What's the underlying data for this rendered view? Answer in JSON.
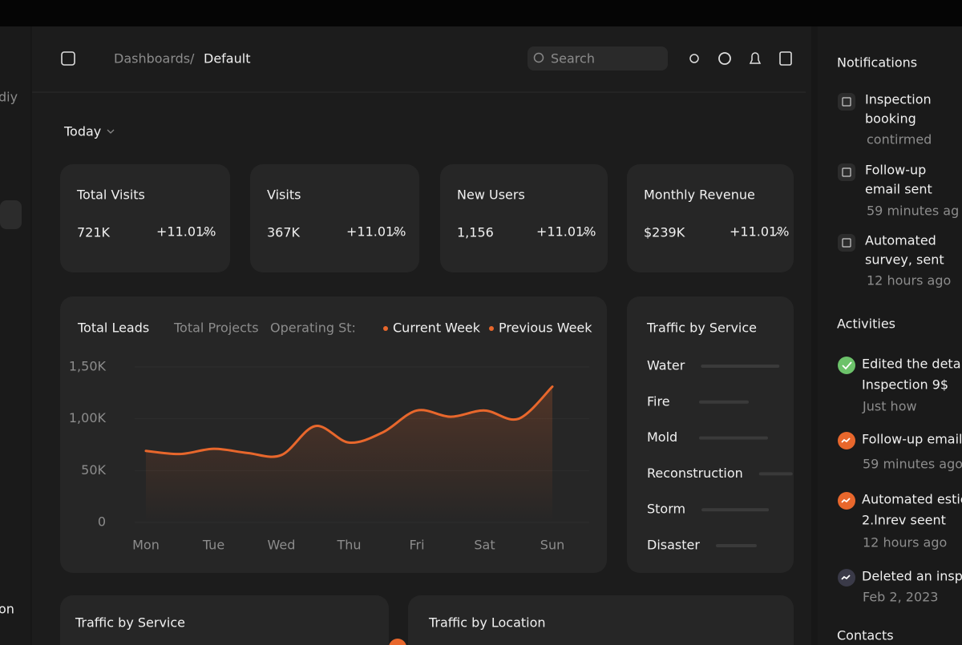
{
  "sidebar_left": {
    "fragment_top": "diy",
    "fragment_bottom": "on"
  },
  "header": {
    "breadcrumb_parent": "Dashboards",
    "separator": "/",
    "breadcrumb_current": "Default",
    "search_placeholder": "Search"
  },
  "filter": "Today",
  "stats": [
    {
      "label": "Total Visits",
      "value": "721K",
      "change": "+11.01%"
    },
    {
      "label": "Visits",
      "value": "367K",
      "change": "+11.01%"
    },
    {
      "label": "New Users",
      "value": "1,156",
      "change": "+11.01%"
    },
    {
      "label": "Monthly Revenue",
      "value": "$239K",
      "change": "+11.01%"
    }
  ],
  "chart_data": {
    "type": "line",
    "title": "Total Leads",
    "tabs": [
      "Total Projects",
      "Operating St:"
    ],
    "categories": [
      "Mon",
      null,
      "Tue",
      null,
      "Wed",
      null,
      "Thu",
      null,
      "Fri",
      null,
      "Sat",
      null,
      "Sun"
    ],
    "series": [
      {
        "name": "Current Week",
        "color": "#e8672c",
        "values": [
          69000,
          66000,
          71000,
          67000,
          65000,
          93000,
          77000,
          87000,
          108000,
          102000,
          108000,
          100000,
          131000
        ]
      },
      {
        "name": "Previous Week",
        "color": "#e8672c",
        "values": [
          null,
          null,
          null,
          null,
          null,
          null,
          null,
          null,
          null,
          null,
          null,
          null,
          null
        ]
      }
    ],
    "ylim": [
      0,
      150000
    ],
    "yticks": [
      0,
      {
        "value": 50000,
        "label": "50K"
      },
      {
        "value": 100000,
        "label": "1,00K"
      },
      {
        "value": 150000,
        "label": "1,50K"
      }
    ],
    "grid": true
  },
  "traffic_service": {
    "title": "Traffic by Service",
    "items": [
      {
        "label": "Water",
        "value": 98
      },
      {
        "label": "Fire",
        "value": 62
      },
      {
        "label": "Mold",
        "value": 86
      },
      {
        "label": "Reconstruction",
        "value": 42
      },
      {
        "label": "Storm",
        "value": 84
      },
      {
        "label": "Disaster",
        "value": 51
      }
    ]
  },
  "bottom_cards": [
    "Traffic by Service",
    "Traffic by Location"
  ],
  "notifications": {
    "title": "Notifications",
    "items": [
      {
        "lines": [
          "Inspection",
          "booking"
        ],
        "time": "contirmed"
      },
      {
        "lines": [
          "Follow-up",
          "email sent"
        ],
        "time": "59 minutes ag"
      },
      {
        "lines": [
          "Automated",
          "survey, sent"
        ],
        "time": "12 hours ago"
      }
    ]
  },
  "activities": {
    "title": "Activities",
    "items": [
      {
        "lines": [
          "Edited the detai",
          "Inspection 9$"
        ],
        "time": "Just how"
      },
      {
        "lines": [
          "Follow-up email"
        ],
        "time": "59 minutes ago"
      },
      {
        "lines": [
          "Automated estic",
          "2.lnrev seent"
        ],
        "time": "12 hours ago"
      },
      {
        "lines": [
          "Deleted an insp"
        ],
        "time": "Feb 2, 2023"
      }
    ]
  },
  "contacts_title": "Contacts"
}
